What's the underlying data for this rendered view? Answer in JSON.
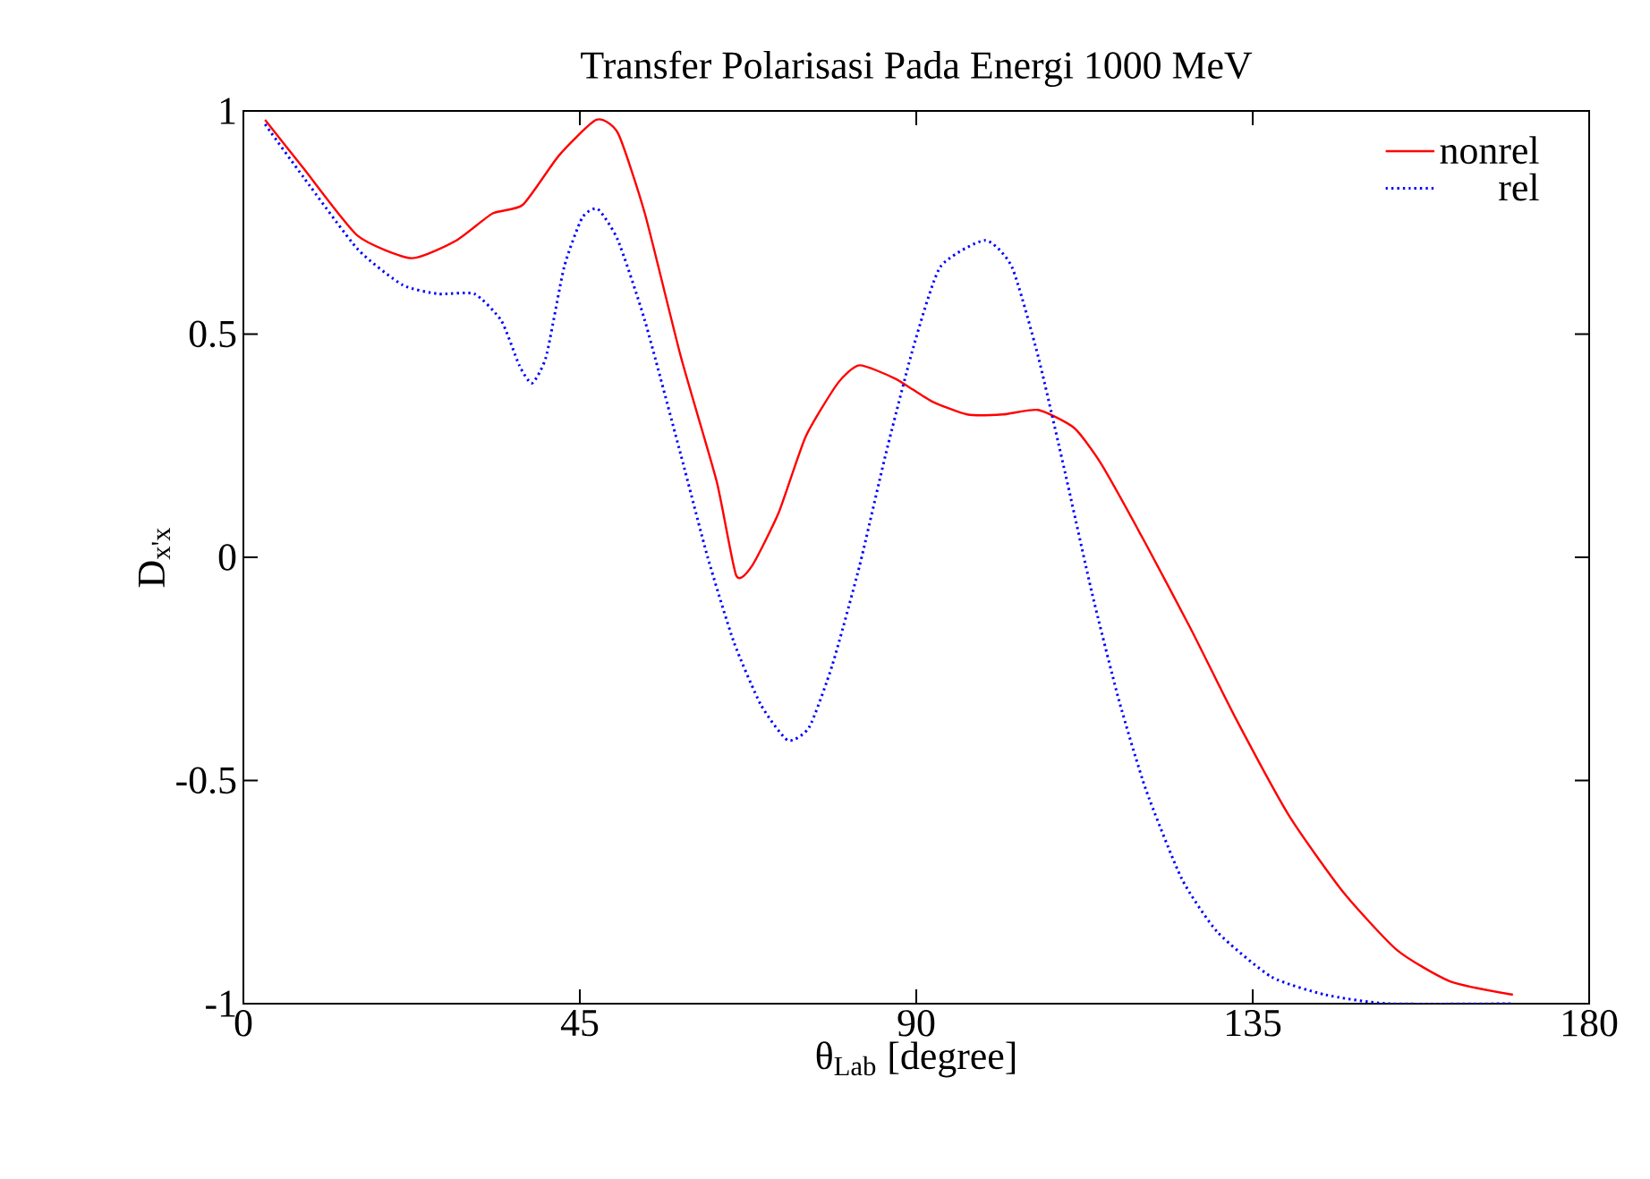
{
  "chart_data": {
    "type": "line",
    "title": "Transfer Polarisasi Pada Energi 1000 MeV",
    "xlabel": "θ$_{Lab}$ [degree]",
    "ylabel": "D$_{x'x}$",
    "xlim": [
      0,
      180
    ],
    "ylim": [
      -1,
      1
    ],
    "xticks": [
      0,
      45,
      90,
      135,
      180
    ],
    "yticks": [
      {
        "value": -1,
        "label": "-1"
      },
      {
        "value": -0.5,
        "label": "-0.5"
      },
      0,
      0.5,
      1
    ],
    "legend": "top right",
    "grid": false,
    "marker": "none",
    "series": [
      {
        "name": "nonrel",
        "color": "#ff0000",
        "line_style": "solid",
        "x": [
          2.9,
          8.1,
          15.3,
          22.5,
          28.5,
          33.3,
          37.4,
          42.2,
          47.2,
          50.1,
          53.7,
          58.5,
          63.3,
          65.9,
          68.0,
          71.6,
          75.2,
          79.5,
          82.4,
          87.2,
          92,
          96.8,
          101.6,
          106.3,
          111.1,
          114.7,
          120.7,
          126.7,
          132.7,
          139.9,
          147.1,
          154.3,
          161.4,
          169.8
        ],
        "values": [
          0.98,
          0.87,
          0.72,
          0.67,
          0.71,
          0.77,
          0.79,
          0.9,
          0.98,
          0.95,
          0.77,
          0.45,
          0.17,
          -0.04,
          -0.02,
          0.1,
          0.27,
          0.39,
          0.43,
          0.4,
          0.35,
          0.32,
          0.32,
          0.33,
          0.29,
          0.21,
          0.03,
          -0.16,
          -0.36,
          -0.58,
          -0.75,
          -0.88,
          -0.95,
          -0.98
        ]
      },
      {
        "name": "rel",
        "color": "#0000ff",
        "line_style": "dotted",
        "x": [
          2.9,
          8.1,
          15.3,
          21.3,
          26.1,
          30.9,
          34.5,
          36.9,
          38.6,
          40.5,
          42.9,
          45.3,
          47.4,
          50.1,
          53.7,
          58.5,
          62.1,
          65.6,
          69.2,
          72.8,
          75.7,
          78.8,
          82.4,
          85.9,
          89.6,
          93.2,
          99.2,
          102.8,
          106.3,
          109.9,
          113.5,
          117.1,
          120.7,
          125.5,
          130.3,
          137.5,
          144.7,
          153.1,
          169.8
        ],
        "values": [
          0.97,
          0.85,
          0.69,
          0.61,
          0.59,
          0.59,
          0.53,
          0.43,
          0.39,
          0.45,
          0.65,
          0.76,
          0.78,
          0.71,
          0.53,
          0.23,
          0.0,
          -0.19,
          -0.33,
          -0.41,
          -0.38,
          -0.24,
          -0.02,
          0.23,
          0.47,
          0.65,
          0.71,
          0.65,
          0.45,
          0.19,
          -0.08,
          -0.32,
          -0.52,
          -0.72,
          -0.84,
          -0.94,
          -0.98,
          -1.0,
          -1.0
        ]
      }
    ]
  }
}
